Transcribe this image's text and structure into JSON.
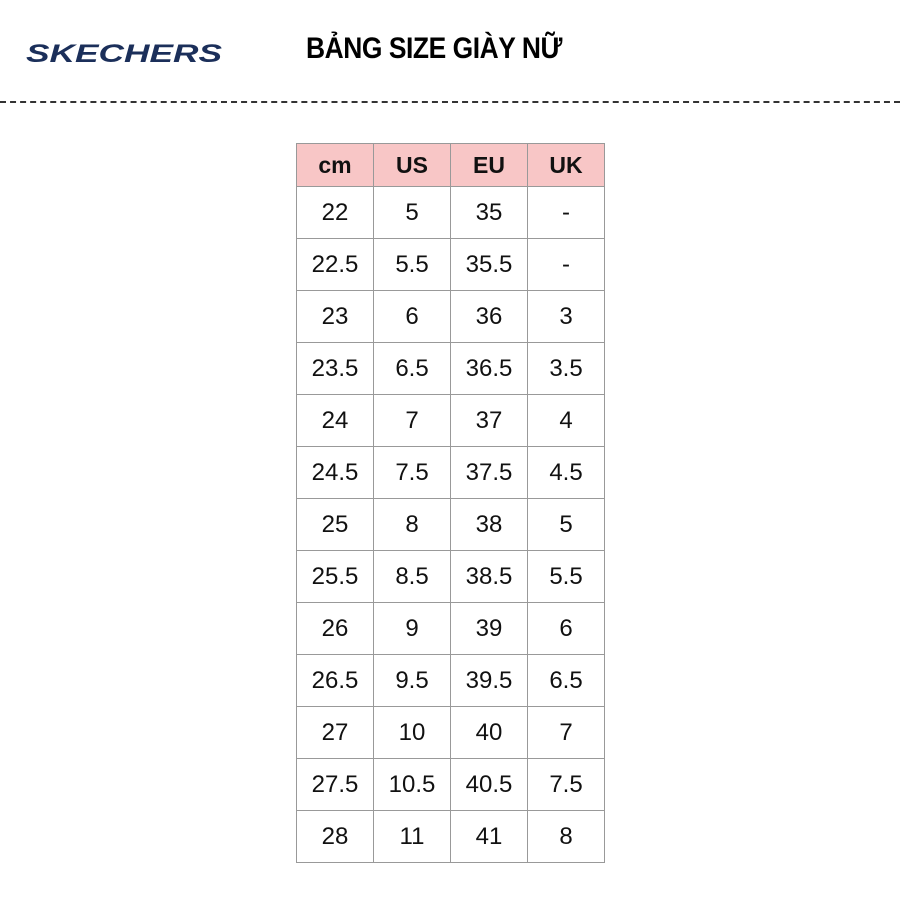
{
  "brand": {
    "logo_text": "SKECHERS",
    "color": "#1b2f5a"
  },
  "title": "BẢNG SIZE GIÀY NỮ",
  "table": {
    "header_color": "#f8c6c6",
    "columns": [
      "cm",
      "US",
      "EU",
      "UK"
    ],
    "rows": [
      [
        "22",
        "5",
        "35",
        "-"
      ],
      [
        "22.5",
        "5.5",
        "35.5",
        "-"
      ],
      [
        "23",
        "6",
        "36",
        "3"
      ],
      [
        "23.5",
        "6.5",
        "36.5",
        "3.5"
      ],
      [
        "24",
        "7",
        "37",
        "4"
      ],
      [
        "24.5",
        "7.5",
        "37.5",
        "4.5"
      ],
      [
        "25",
        "8",
        "38",
        "5"
      ],
      [
        "25.5",
        "8.5",
        "38.5",
        "5.5"
      ],
      [
        "26",
        "9",
        "39",
        "6"
      ],
      [
        "26.5",
        "9.5",
        "39.5",
        "6.5"
      ],
      [
        "27",
        "10",
        "40",
        "7"
      ],
      [
        "27.5",
        "10.5",
        "40.5",
        "7.5"
      ],
      [
        "28",
        "11",
        "41",
        "8"
      ]
    ]
  }
}
